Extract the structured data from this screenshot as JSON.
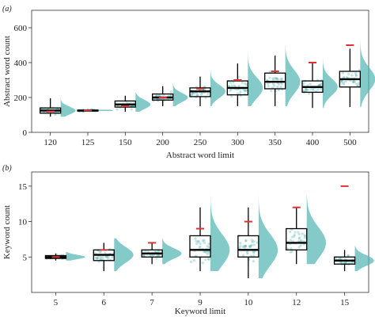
{
  "chart_data": [
    {
      "panel_label": "(a)",
      "type": "box",
      "xlabel": "Abstract word limit",
      "ylabel": "Abstract word count",
      "ylim": [
        0,
        700
      ],
      "yticks": [
        0,
        200,
        400,
        600
      ],
      "grid": false,
      "categories": [
        "120",
        "125",
        "150",
        "200",
        "250",
        "300",
        "350",
        "400",
        "500"
      ],
      "limits": [
        120,
        125,
        150,
        200,
        250,
        300,
        350,
        400,
        500
      ],
      "boxes": [
        {
          "q1": 110,
          "median": 125,
          "q3": 140,
          "whisker_low": 90,
          "whisker_high": 195
        },
        {
          "q1": 123,
          "median": 125,
          "q3": 127,
          "whisker_low": 122,
          "whisker_high": 129
        },
        {
          "q1": 145,
          "median": 160,
          "q3": 180,
          "whisker_low": 118,
          "whisker_high": 210
        },
        {
          "q1": 185,
          "median": 200,
          "q3": 220,
          "whisker_low": 150,
          "whisker_high": 265
        },
        {
          "q1": 205,
          "median": 235,
          "q3": 255,
          "whisker_low": 150,
          "whisker_high": 320
        },
        {
          "q1": 215,
          "median": 255,
          "q3": 295,
          "whisker_low": 150,
          "whisker_high": 395
        },
        {
          "q1": 250,
          "median": 290,
          "q3": 340,
          "whisker_low": 150,
          "whisker_high": 440
        },
        {
          "q1": 230,
          "median": 260,
          "q3": 295,
          "whisker_low": 140,
          "whisker_high": 400
        },
        {
          "q1": 260,
          "median": 305,
          "q3": 350,
          "whisker_low": 145,
          "whisker_high": 480
        }
      ],
      "colors": {
        "points": "#4fb3b0",
        "box": "#000000",
        "limit_marker": "#e0312f"
      }
    },
    {
      "panel_label": "(b)",
      "type": "box",
      "xlabel": "Keyword limit",
      "ylabel": "Keyword count",
      "ylim": [
        0,
        17
      ],
      "yticks": [
        5,
        10,
        15
      ],
      "grid": false,
      "categories": [
        "5",
        "6",
        "7",
        "9",
        "10",
        "12",
        "15"
      ],
      "limits": [
        5,
        6,
        7,
        9,
        10,
        12,
        15
      ],
      "boxes": [
        {
          "q1": 4.8,
          "median": 5,
          "q3": 5.2,
          "whisker_low": 4.5,
          "whisker_high": 5.5
        },
        {
          "q1": 4.5,
          "median": 5.3,
          "q3": 6,
          "whisker_low": 3,
          "whisker_high": 7
        },
        {
          "q1": 5,
          "median": 5.5,
          "q3": 6,
          "whisker_low": 4,
          "whisker_high": 7
        },
        {
          "q1": 5,
          "median": 6,
          "q3": 8,
          "whisker_low": 3,
          "whisker_high": 12
        },
        {
          "q1": 5,
          "median": 6,
          "q3": 8,
          "whisker_low": 2,
          "whisker_high": 12
        },
        {
          "q1": 6,
          "median": 7,
          "q3": 9,
          "whisker_low": 4,
          "whisker_high": 12
        },
        {
          "q1": 4,
          "median": 4.5,
          "q3": 5,
          "whisker_low": 3,
          "whisker_high": 6
        }
      ],
      "colors": {
        "points": "#4fb3b0",
        "box": "#000000",
        "limit_marker": "#e0312f"
      }
    }
  ]
}
